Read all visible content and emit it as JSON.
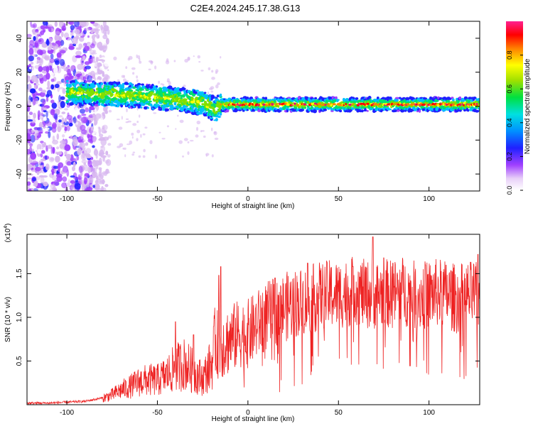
{
  "title": "C2E4.2024.245.17.38.G13",
  "chart_data": [
    {
      "type": "heatmap",
      "xlabel": "Height of straight line (km)",
      "ylabel": "Frequency (Hz)",
      "xlim": [
        -122,
        128
      ],
      "ylim": [
        -50,
        50
      ],
      "xticks": [
        -100,
        -50,
        0,
        50,
        100
      ],
      "yticks": [
        -40,
        -20,
        0,
        20,
        40
      ],
      "colorbar": {
        "label": "Normalized spectral amplitude",
        "range": [
          0,
          1
        ],
        "ticks": [
          0.0,
          0.2,
          0.4,
          0.6,
          0.8
        ],
        "tick_labels": [
          "0.0",
          "0.2",
          "0.4",
          "0.6",
          "0.8"
        ],
        "colors": [
          "#ffffff",
          "#d8b8f0",
          "#a040ff",
          "#2020ff",
          "#00c0ff",
          "#00e070",
          "#80e000",
          "#ffff00",
          "#ff8000",
          "#ff0000",
          "#e0107a"
        ]
      },
      "features": {
        "noise_region_x": [
          -122,
          -85
        ],
        "band_center_hz": [
          [
            -95,
            8
          ],
          [
            -60,
            6
          ],
          [
            -40,
            4
          ],
          [
            -25,
            2
          ],
          [
            -18,
            -2
          ],
          [
            -15,
            1
          ],
          [
            0,
            1
          ],
          [
            50,
            1
          ],
          [
            128,
            1
          ]
        ],
        "band_halfwidth_hz": 4
      }
    },
    {
      "type": "line",
      "xlabel": "Height of straight line (km)",
      "ylabel": "SNR (10 * v/v)",
      "yunit": "(x10^4)",
      "xlim": [
        -122,
        128
      ],
      "ylim": [
        0,
        1.95
      ],
      "xticks": [
        -100,
        -50,
        0,
        50,
        100
      ],
      "yticks": [
        0.5,
        1.0,
        1.5
      ],
      "ytick_labels": [
        "0.5",
        "1.0",
        "1.5"
      ],
      "color": "#ee2222",
      "x": [
        -122,
        -110,
        -100,
        -90,
        -85,
        -80,
        -75,
        -70,
        -65,
        -60,
        -55,
        -50,
        -45,
        -40,
        -35,
        -30,
        -25,
        -20,
        -18,
        -15,
        -10,
        -5,
        0,
        5,
        10,
        15,
        20,
        25,
        30,
        35,
        40,
        45,
        50,
        55,
        60,
        65,
        70,
        75,
        80,
        85,
        90,
        95,
        100,
        105,
        110,
        115,
        120,
        125,
        128
      ],
      "y": [
        0.02,
        0.02,
        0.03,
        0.04,
        0.06,
        0.08,
        0.12,
        0.18,
        0.22,
        0.28,
        0.3,
        0.3,
        0.36,
        0.45,
        0.5,
        0.4,
        0.32,
        0.5,
        0.75,
        0.72,
        0.78,
        0.85,
        0.85,
        0.95,
        1.05,
        1.1,
        1.15,
        1.2,
        1.22,
        1.25,
        1.28,
        1.3,
        1.3,
        1.32,
        1.35,
        1.3,
        1.3,
        1.32,
        1.3,
        1.35,
        1.3,
        1.28,
        1.3,
        1.32,
        1.3,
        1.25,
        1.28,
        1.3,
        1.22
      ],
      "spikes": [
        [
          -40,
          0.95
        ],
        [
          -30,
          0.8
        ],
        [
          -16,
          1.48
        ],
        [
          -15,
          1.58
        ],
        [
          15,
          1.45
        ],
        [
          33,
          1.62
        ],
        [
          58,
          1.58
        ],
        [
          69,
          1.92
        ],
        [
          75,
          1.68
        ],
        [
          80,
          1.62
        ],
        [
          98,
          1.6
        ],
        [
          127,
          1.72
        ]
      ]
    }
  ]
}
